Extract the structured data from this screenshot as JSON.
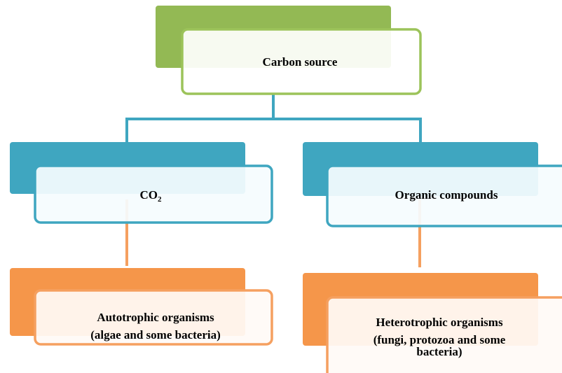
{
  "nodes": [
    {
      "label": "Carbon source"
    },
    {
      "label": "CO",
      "subscript": "2"
    },
    {
      "label": "Organic compounds"
    },
    {
      "lines": [
        "Autotrophic organisms",
        "(algae and some bacteria)"
      ]
    },
    {
      "lines": [
        "Heterotrophic organisms",
        "(fungi, protozoa and some",
        "bacteria)"
      ]
    }
  ]
}
